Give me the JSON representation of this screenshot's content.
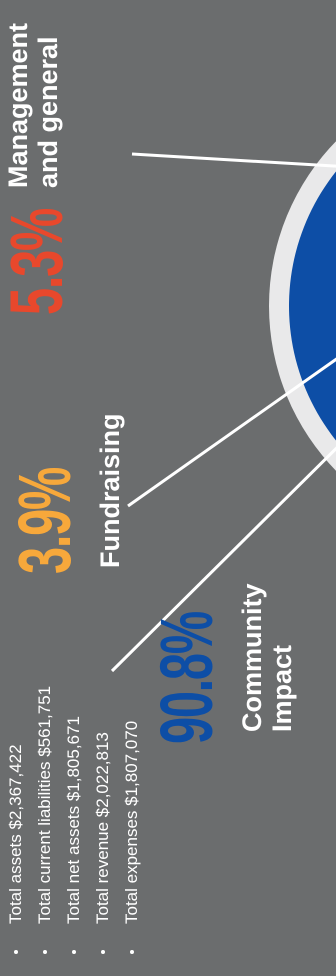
{
  "chart_data": {
    "type": "pie",
    "colors": {
      "Community Impact": "#0d4ea6",
      "Fundraising": "#f7a83b",
      "Management and general": "#e8482c"
    },
    "slices": [
      {
        "label": "Community Impact",
        "value": 90.8,
        "display": "90.8%"
      },
      {
        "label": "Fundraising",
        "value": 3.9,
        "display": "3.9%"
      },
      {
        "label": "Management and general",
        "value": 5.3,
        "display": "5.3%"
      }
    ]
  },
  "labels": {
    "community_pct": "90.8%",
    "community_line1": "Community",
    "community_line2": "Impact",
    "fundraising_pct": "3.9%",
    "fundraising_line1": "Fundraising",
    "management_pct": "5.3%",
    "management_line1": "Management",
    "management_line2": "and general"
  },
  "stats": [
    "Total assets $2,367,422",
    "Total current liabilities $561,751",
    "Total net assets $1,805,671",
    "Total revenue $2,022,813",
    "Total expenses $1,807,070"
  ]
}
